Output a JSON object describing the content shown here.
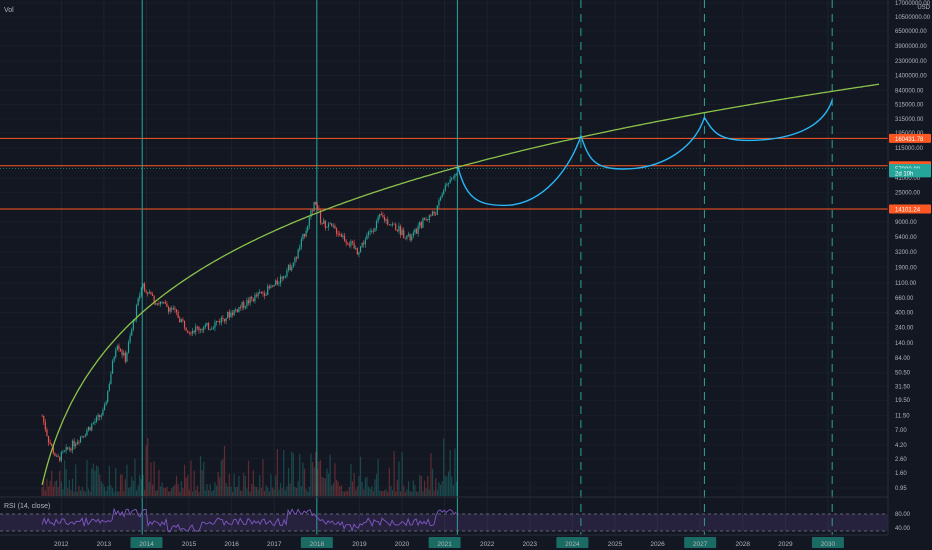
{
  "panes": {
    "volume_label": "Vol",
    "rsi_label": "RSI (14, close)"
  },
  "price_axis": {
    "currency": "USD",
    "ticks": [
      "17000000.00",
      "10500000.00",
      "6500000.00",
      "3900000.00",
      "2300000.00",
      "1400000.00",
      "840000.00",
      "515000.00",
      "315000.00",
      "195000.00",
      "115000.00",
      "41000.00",
      "25000.00",
      "9000.00",
      "5400.00",
      "3200.00",
      "1900.00",
      "1100.00",
      "660.00",
      "400.00",
      "240.00",
      "140.00",
      "84.00",
      "50.50",
      "31.50",
      "19.50",
      "11.50",
      "7.00",
      "4.20",
      "2.60",
      "1.60",
      "0.95"
    ],
    "badges": [
      {
        "text": "160431.78",
        "value": 160431.78,
        "color": "#ff5722"
      },
      {
        "text": "62549.11",
        "value": 62549.11,
        "color": "#ff5722"
      },
      {
        "text": "57000.00",
        "value": 57000,
        "color": "#26a69a"
      },
      {
        "text": "2d 10h",
        "value": 49000,
        "color": "#26a69a"
      },
      {
        "text": "14101.24",
        "value": 14101.24,
        "color": "#ff5722"
      }
    ]
  },
  "rsi_axis": {
    "ticks": [
      "80.00",
      "40.00"
    ]
  },
  "time_axis": {
    "years": [
      "2012",
      "2013",
      "2014",
      "2015",
      "2016",
      "2017",
      "2018",
      "2019",
      "2020",
      "2021",
      "2022",
      "2023",
      "2024",
      "2025",
      "2026",
      "2027",
      "2028",
      "2029",
      "2030"
    ],
    "highlighted": [
      "2014",
      "2018",
      "2021",
      "2024",
      "2027",
      "2030"
    ]
  },
  "drawings": {
    "horizontal_levels": [
      160431.78,
      62549.11,
      14101.24
    ],
    "solid_cycle_years": [
      2013.9,
      2018.0,
      2021.3
    ],
    "dashed_cycle_years": [
      2024.2,
      2027.1,
      2030.1
    ],
    "arc_peaks": [
      {
        "year": 2021.3,
        "price": 64000
      },
      {
        "year": 2024.2,
        "price": 175000
      },
      {
        "year": 2027.1,
        "price": 330000
      },
      {
        "year": 2030.1,
        "price": 600000
      }
    ],
    "arc_bottoms": [
      {
        "year": 2022.4,
        "price": 16000
      },
      {
        "year": 2025.2,
        "price": 56000
      },
      {
        "year": 2028.1,
        "price": 150000
      }
    ]
  },
  "colors": {
    "background": "#131722",
    "candle_up": "#26a69a",
    "candle_down": "#ef5350",
    "growth_curve": "#8bc34a",
    "projection_arc": "#29b6f6",
    "cycle_line": "#26a69a",
    "level_line": "#ff5722",
    "rsi_line": "#7e57c2"
  }
}
